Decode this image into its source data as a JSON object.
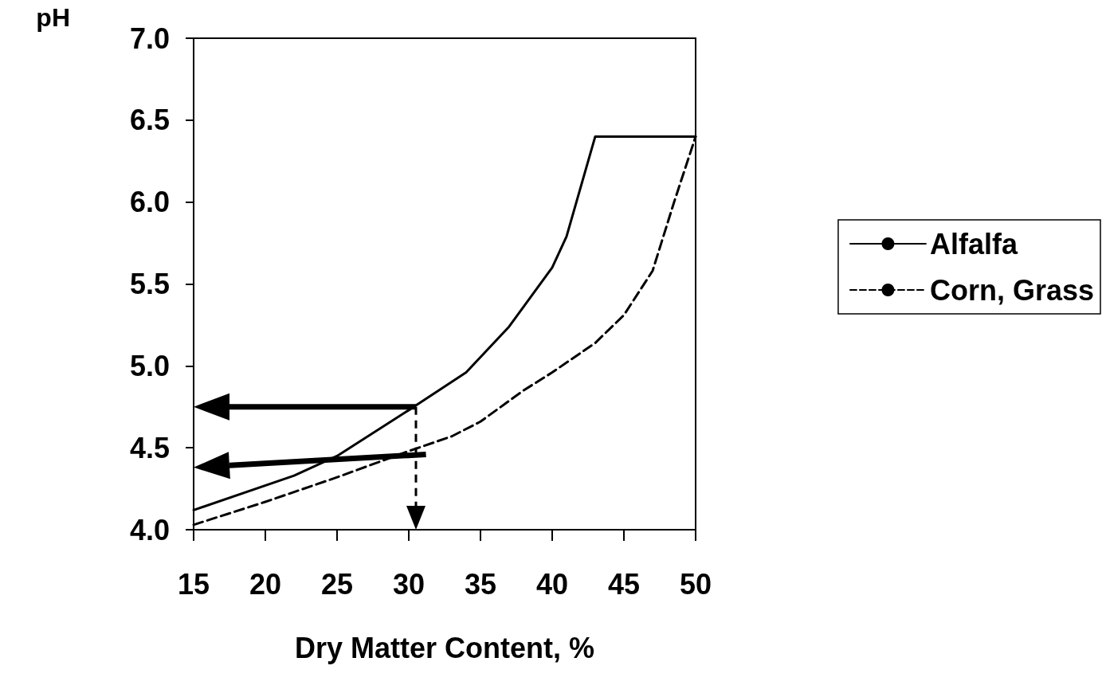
{
  "chart_data": {
    "type": "line",
    "xlabel": "Dry Matter Content, %",
    "ylabel": "pH",
    "xlim": [
      15,
      50
    ],
    "xticks": [
      15,
      20,
      25,
      30,
      35,
      40,
      45,
      50
    ],
    "ylim": [
      4,
      7
    ],
    "yticks": [
      {
        "value": 4,
        "label": "4.0"
      },
      {
        "value": 4.5,
        "label": "4.5"
      },
      {
        "value": 5,
        "label": "5.0"
      },
      {
        "value": 5.5,
        "label": "5.5"
      },
      {
        "value": 6,
        "label": "6.0"
      },
      {
        "value": 6.5,
        "label": "6.5"
      },
      {
        "value": 7,
        "label": "7.0"
      }
    ],
    "grid": false,
    "legend": "right",
    "marker": "none",
    "series": [
      {
        "name": "Alfalfa",
        "color": "#000000",
        "line_style": "solid",
        "x": [
          15,
          22,
          25,
          30,
          34,
          37,
          40,
          41,
          43,
          50
        ],
        "values": [
          4.12,
          4.33,
          4.45,
          4.73,
          4.96,
          5.24,
          5.6,
          5.79,
          6.4,
          6.4
        ]
      },
      {
        "name": "Corn, Grass",
        "color": "#000000",
        "line_style": "dashed",
        "x": [
          15,
          20,
          25,
          30,
          33,
          35,
          38,
          40,
          43,
          45,
          47,
          48.5,
          50
        ],
        "values": [
          4.03,
          4.17,
          4.32,
          4.48,
          4.57,
          4.66,
          4.85,
          4.96,
          5.14,
          5.31,
          5.58,
          6.0,
          6.4
        ]
      }
    ]
  }
}
